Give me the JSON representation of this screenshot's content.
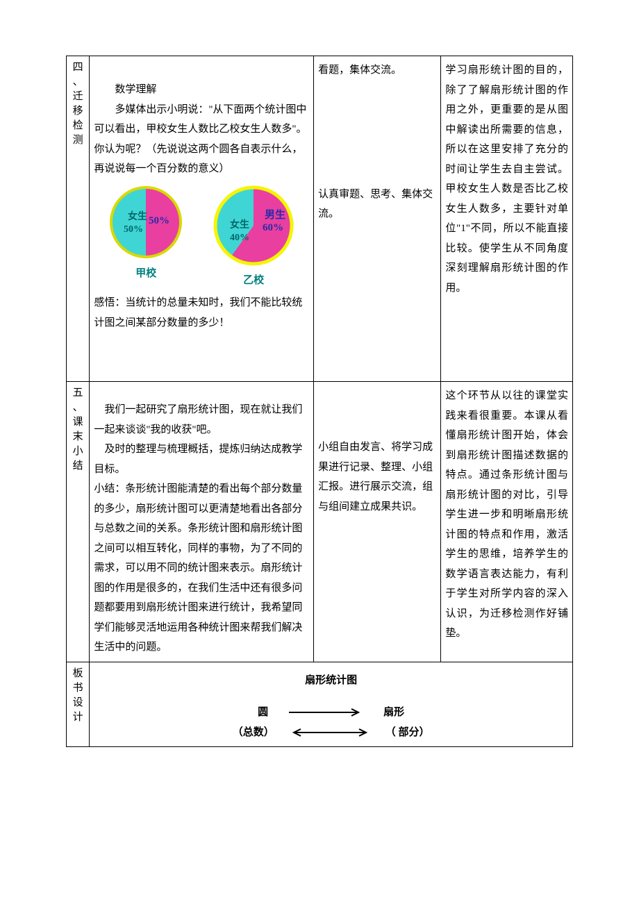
{
  "row1": {
    "label": "四、迁移检测",
    "heading": "数学理解",
    "body1": "多媒体出示小明说：\"从下面两个统计图中可以看出，甲校女生人数比乙校女生人数多\"。你认为呢？（先说说这两个圆各自表示什么，再说说每一个百分数的意义）",
    "sense": "感悟：当统计的总量未知时，我们不能比较统计图之间某部分数量的多少！",
    "activity1": "看题，集体交流。",
    "activity2": "认真审题、思考、集体交流。",
    "note": "学习扇形统计图的目的，除了了解扇形统计图的作用之外，更重要的是从图中解读出所需要的信息，所以在这里安排了充分的时间让学生去自主尝试。甲校女生人数是否比乙校女生人数多，主要针对单位\"1\"不同，所以不能直接比较。使学生从不同角度深刻理解扇形统计图的作用。"
  },
  "chart_jia": {
    "type": "pie",
    "caption": "甲校",
    "slices": [
      {
        "label": "女生",
        "percent_text": "50%",
        "value": 50,
        "color": "#40d5d5"
      },
      {
        "label": "",
        "percent_text": "50%",
        "value": 50,
        "color": "#e83fa0"
      }
    ],
    "outline": "#d9d900",
    "label_color": "#006666",
    "pct_color_left": "#006666",
    "pct_color_right": "#2a2aa8",
    "radius": 50
  },
  "chart_yi": {
    "type": "pie",
    "caption": "乙校",
    "slices": [
      {
        "label": "女生",
        "percent_text": "40%",
        "value": 40,
        "color": "#40d5d5"
      },
      {
        "label": "男生",
        "percent_text": "60%",
        "value": 60,
        "color": "#e83fa0"
      }
    ],
    "outline": "#f5f500",
    "label_color_girl": "#006666",
    "label_color_boy": "#2a2aa8",
    "pct_color_girl": "#006666",
    "pct_color_boy": "#2a2aa8",
    "radius": 55
  },
  "row2": {
    "label": "五、课末小结",
    "body1": "我们一起研究了扇形统计图，现在就让我们一起来谈谈\"我的收获\"吧。",
    "body2": "及时的整理与梳理概括，提炼归纳达成教学目标。",
    "body3": "小结：条形统计图能清楚的看出每个部分数量的多少，扇形统计图可以更清楚地看出各部分与总数之间的关系。条形统计图和扇形统计图之间可以相互转化，同样的事物，为了不同的需求，可以用不同的统计图来表示。扇形统计图的作用是很多的，在我们生活中还有很多问题都要用到扇形统计图来进行统计，我希望同学们能够灵活地运用各种统计图来帮我们解决生活中的问题。",
    "activity": "小组自由发言、将学习成果进行记录、整理、小组汇报。进行展示交流，组与组间建立成果共识。",
    "note": "这个环节从以往的课堂实践来看很重要。本课从看懂扇形统计图开始，体会到扇形统计图描述数据的特点。通过条形统计图与扇形统计图的对比，引导学生进一步和明晰扇形统计图的特点和作用，激活学生的思维，培养学生的数学语言表达能力，有利于学生对所学内容的深入认识，为迁移检测作好铺垫。"
  },
  "row3": {
    "label": "板书设计",
    "title": "扇形统计图",
    "left1": "圆",
    "right1": "扇形",
    "left2": "（总数）",
    "right2": "（ 部分）",
    "arrow_color": "#000000"
  }
}
